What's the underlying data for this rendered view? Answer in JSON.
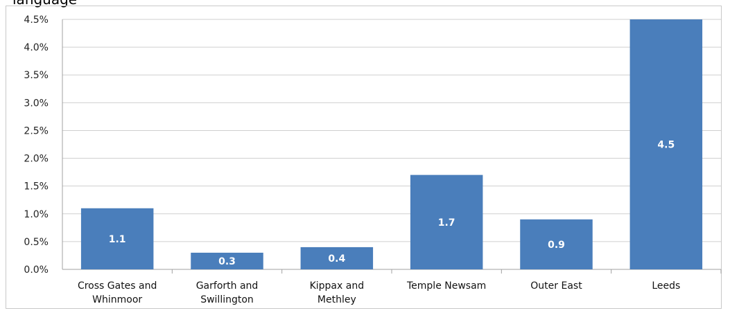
{
  "page": {
    "top_text": "language"
  },
  "chart_data": {
    "type": "bar",
    "title": "",
    "xlabel": "",
    "ylabel": "",
    "categories": [
      [
        "Cross Gates and",
        "Whinmoor"
      ],
      [
        "Garforth and",
        "Swillington"
      ],
      [
        "Kippax and",
        "Methley"
      ],
      [
        "Temple Newsam"
      ],
      [
        "Outer East"
      ],
      [
        "Leeds"
      ]
    ],
    "values": [
      1.1,
      0.3,
      0.4,
      1.7,
      0.9,
      4.5
    ],
    "data_labels": [
      "1.1",
      "0.3",
      "0.4",
      "1.7",
      "0.9",
      "4.5"
    ],
    "yticks": [
      "0.0%",
      "0.5%",
      "1.0%",
      "1.5%",
      "2.0%",
      "2.5%",
      "3.0%",
      "3.5%",
      "4.0%",
      "4.5%"
    ],
    "ylim": [
      0,
      4.5
    ],
    "grid": true,
    "legend": "none",
    "bar_color": "#4a7ebb",
    "grid_color": "#cfcfcf",
    "axis_color": "#a0a0a0"
  }
}
